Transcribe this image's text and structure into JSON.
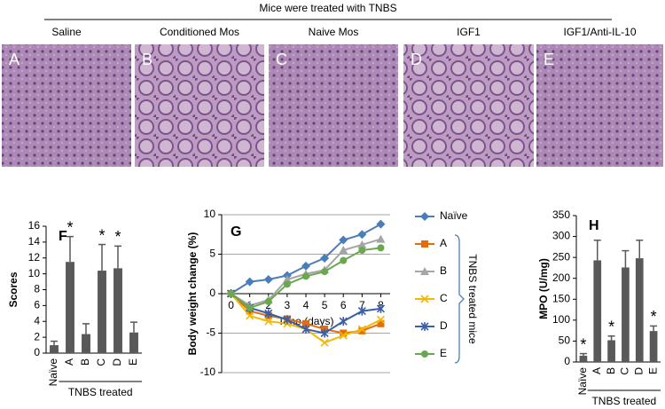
{
  "header": "Mice were treated with TNBS",
  "panels": [
    {
      "label": "A",
      "title": "Saline"
    },
    {
      "label": "B",
      "title": "Conditioned Mos"
    },
    {
      "label": "C",
      "title": "Naive Mos"
    },
    {
      "label": "D",
      "title": "IGF1"
    },
    {
      "label": "E",
      "title": "IGF1/Anti-IL-10"
    }
  ],
  "chart_data": [
    {
      "type": "bar",
      "panel": "F",
      "y_label": "Scores",
      "group_label": "TNBS treated",
      "categories": [
        "Naïve",
        "A",
        "B",
        "C",
        "D",
        "E"
      ],
      "values": [
        1,
        11.5,
        2.4,
        10.4,
        10.7,
        2.6
      ],
      "errors": [
        0.5,
        3.2,
        1.3,
        3.3,
        2.8,
        1.3
      ],
      "markers": [
        null,
        "*",
        null,
        "*",
        "*",
        null
      ],
      "color": "#595959",
      "ylim": [
        0,
        16
      ],
      "yticks": [
        0,
        2,
        4,
        6,
        8,
        10,
        12,
        14,
        16
      ]
    },
    {
      "type": "line",
      "panel": "G",
      "y_label": "Body weight change (%)",
      "x_label": "Time (days)",
      "legend_group_label": "TNBS treated mice",
      "x": [
        0,
        1,
        2,
        3,
        4,
        5,
        6,
        7,
        8
      ],
      "series": [
        {
          "name": "Naïve",
          "color": "#4a7ebb",
          "marker": "diamond",
          "values": [
            0,
            1.5,
            1.8,
            2.3,
            3.5,
            4.5,
            6.8,
            7.5,
            8.8
          ]
        },
        {
          "name": "A",
          "color": "#e46c0a",
          "marker": "square",
          "values": [
            0,
            -2.2,
            -2.8,
            -3.2,
            -3.8,
            -4.5,
            -5,
            -4.7,
            -3.8
          ]
        },
        {
          "name": "B",
          "color": "#a5a5a5",
          "marker": "triangle",
          "values": [
            0,
            -1.5,
            -0.8,
            1.8,
            2.5,
            3,
            5.5,
            6.2,
            6.9
          ]
        },
        {
          "name": "C",
          "color": "#f5b800",
          "marker": "x",
          "values": [
            0,
            -2.8,
            -3.5,
            -3.8,
            -4.5,
            -6.2,
            -5.3,
            -4.5,
            -3.3
          ]
        },
        {
          "name": "D",
          "color": "#3a5fa8",
          "marker": "star",
          "values": [
            0,
            -1.8,
            -2.5,
            -3.3,
            -4.5,
            -5,
            -3.5,
            -2.2,
            -1.9
          ]
        },
        {
          "name": "E",
          "color": "#6aa84f",
          "marker": "circle",
          "values": [
            0,
            -1.8,
            -1,
            1.2,
            2.2,
            2.8,
            4.2,
            5.5,
            5.8
          ]
        }
      ],
      "xlim": [
        -0.5,
        8.5
      ],
      "xticks": [
        0,
        1,
        2,
        3,
        4,
        5,
        6,
        7,
        8
      ],
      "ylim": [
        -10,
        10
      ],
      "yticks": [
        -10,
        -5,
        0,
        5,
        10
      ],
      "grid": true
    },
    {
      "type": "bar",
      "panel": "H",
      "y_label": "MPO (U/mg)",
      "group_label": "TNBS treated",
      "categories": [
        "Naïve",
        "A",
        "B",
        "C",
        "D",
        "E"
      ],
      "values": [
        15,
        243,
        52,
        226,
        248,
        74
      ],
      "errors": [
        5,
        48,
        10,
        40,
        43,
        12
      ],
      "markers": [
        "*",
        null,
        "*",
        null,
        null,
        "*"
      ],
      "color": "#595959",
      "ylim": [
        0,
        350
      ],
      "yticks": [
        0,
        50,
        100,
        150,
        200,
        250,
        300,
        350
      ]
    }
  ]
}
